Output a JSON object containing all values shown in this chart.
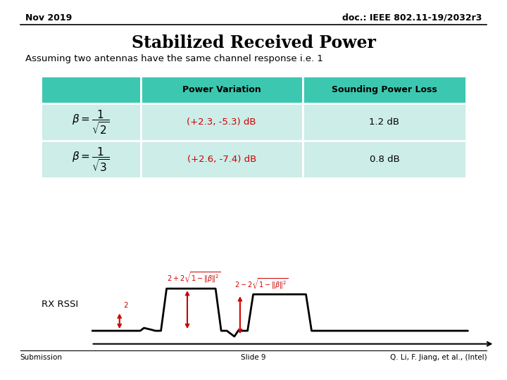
{
  "title": "Stabilized Received Power",
  "subtitle": "Assuming two antennas have the same channel response i.e. 1",
  "header_left": "Nov 2019",
  "header_right": "doc.: IEEE 802.11-19/2032r3",
  "footer_left": "Submission",
  "footer_center": "Slide 9",
  "footer_right": "Q. Li, F. Jiang, et al., (Intel)",
  "table_header_bg": "#3CC8B0",
  "table_row1_bg": "#CCEDE8",
  "table_row2_bg": "#CCEDE8",
  "col2_header": "Power Variation",
  "col3_header": "Sounding Power Loss",
  "row1_col2": "(+2.3, -5.3) dB",
  "row1_col3": "1.2 dB",
  "row2_col2": "(+2.6, -7.4) dB",
  "row2_col3": "0.8 dB",
  "red_color": "#CC0000",
  "black_color": "#000000",
  "bg_color": "#FFFFFF"
}
